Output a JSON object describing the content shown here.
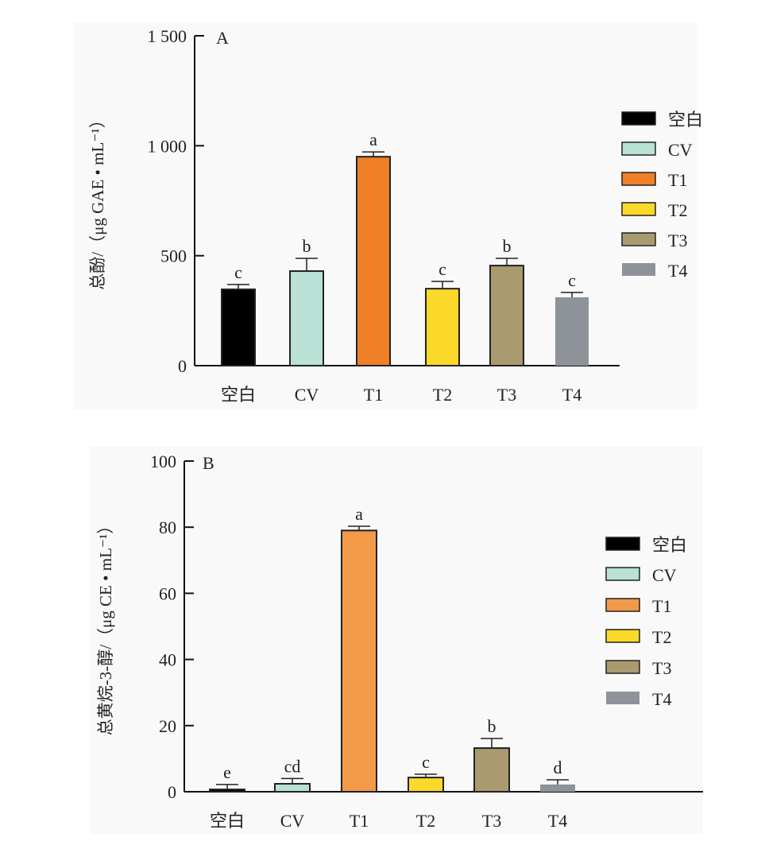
{
  "chart_data": [
    {
      "type": "bar",
      "panel": "A",
      "ylabel": "总酚/（μg GAE • mL⁻¹）",
      "ylim": [
        0,
        1500
      ],
      "yticks": [
        0,
        500,
        1000,
        1500
      ],
      "ytick_labels": [
        "0",
        "500",
        "1 000",
        "1 500"
      ],
      "categories": [
        "空白",
        "CV",
        "T1",
        "T2",
        "T3",
        "T4"
      ],
      "values": [
        347,
        430,
        950,
        350,
        455,
        311
      ],
      "errors": [
        22,
        58,
        22,
        33,
        33,
        22
      ],
      "sig_letters": [
        "c",
        "b",
        "a",
        "c",
        "b",
        "c"
      ],
      "colors": [
        "#000000",
        "#b9e1d6",
        "#f07f26",
        "#fbd929",
        "#a99a70",
        "#8e9399"
      ],
      "legend": [
        "空白",
        "CV",
        "T1",
        "T2",
        "T3",
        "T4"
      ],
      "legend_position": "right"
    },
    {
      "type": "bar",
      "panel": "B",
      "ylabel": "总黄烷-3-醇/（μg CE • mL⁻¹）",
      "ylim": [
        0,
        100
      ],
      "yticks": [
        0,
        20,
        40,
        60,
        80,
        100
      ],
      "ytick_labels": [
        "0",
        "20",
        "40",
        "60",
        "80",
        "100"
      ],
      "categories": [
        "空白",
        "CV",
        "T1",
        "T2",
        "T3",
        "T4"
      ],
      "values": [
        0.7,
        2.4,
        79,
        4.3,
        13.2,
        2.2
      ],
      "errors": [
        1.5,
        1.6,
        1.3,
        1.0,
        2.9,
        1.4
      ],
      "sig_letters": [
        "e",
        "cd",
        "a",
        "c",
        "b",
        "d"
      ],
      "colors": [
        "#000000",
        "#b9e1d6",
        "#f39a48",
        "#fbd929",
        "#a99a70",
        "#8e9399"
      ],
      "legend": [
        "空白",
        "CV",
        "T1",
        "T2",
        "T3",
        "T4"
      ],
      "legend_position": "right"
    }
  ]
}
